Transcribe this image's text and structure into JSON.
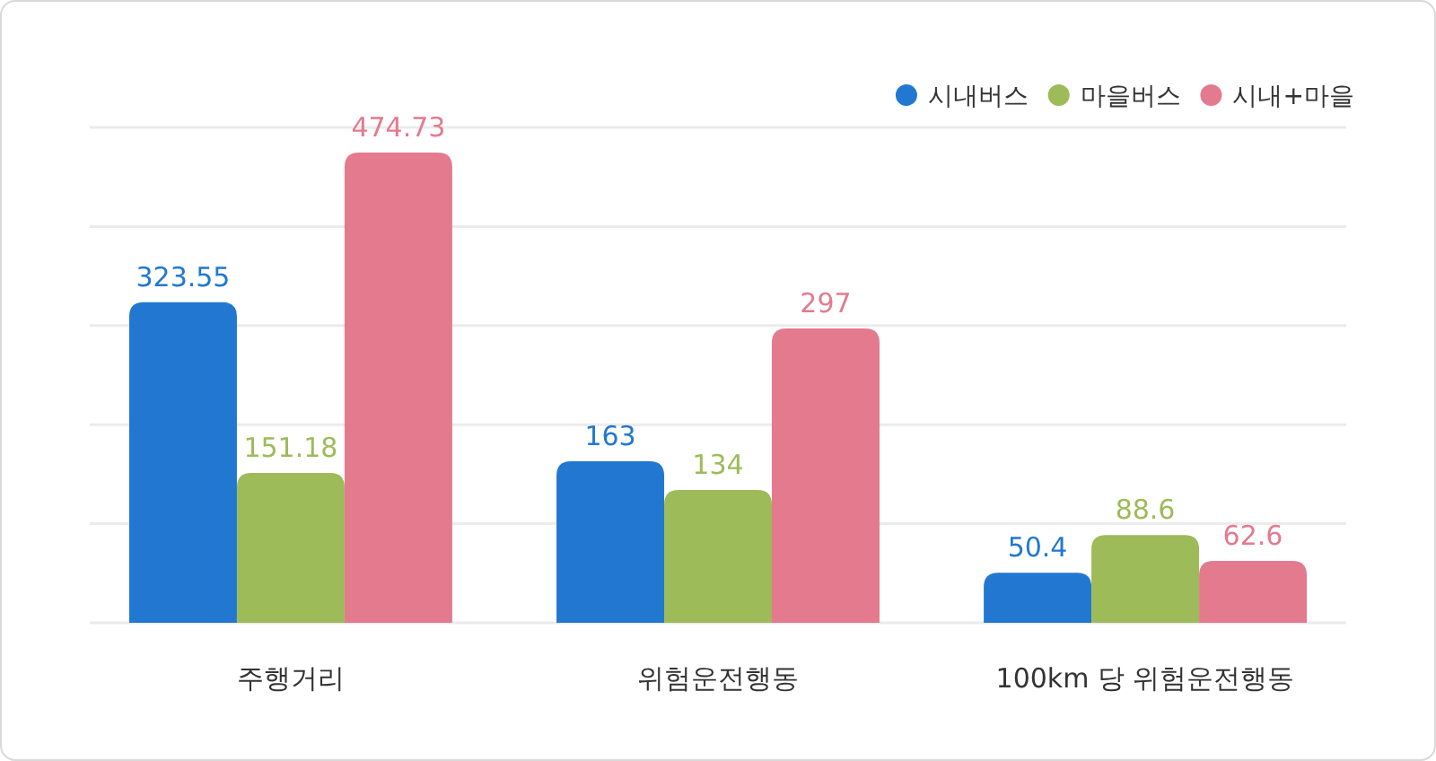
{
  "chart_data": {
    "type": "bar",
    "categories": [
      "주행거리",
      "위험운전행동",
      "100km 당 위험운전행동"
    ],
    "series": [
      {
        "name": "시내버스",
        "color": "#2278d0",
        "values": [
          323.55,
          163,
          50.4
        ]
      },
      {
        "name": "마을버스",
        "color": "#9dbb59",
        "values": [
          151.18,
          134,
          88.6
        ]
      },
      {
        "name": "시내+마을",
        "color": "#e47a8e",
        "values": [
          474.73,
          297,
          62.6
        ]
      }
    ],
    "ylim": [
      0,
      500
    ],
    "yticks": [
      {
        "value": 0,
        "label": null
      },
      {
        "value": 100,
        "label": null
      },
      {
        "value": 200,
        "label": null
      },
      {
        "value": 300,
        "label": null
      },
      {
        "value": 400,
        "label": null
      },
      {
        "value": 500,
        "label": null
      }
    ],
    "tick_labels": "x",
    "grid": "y",
    "legend": "top right",
    "data_labels": true
  }
}
